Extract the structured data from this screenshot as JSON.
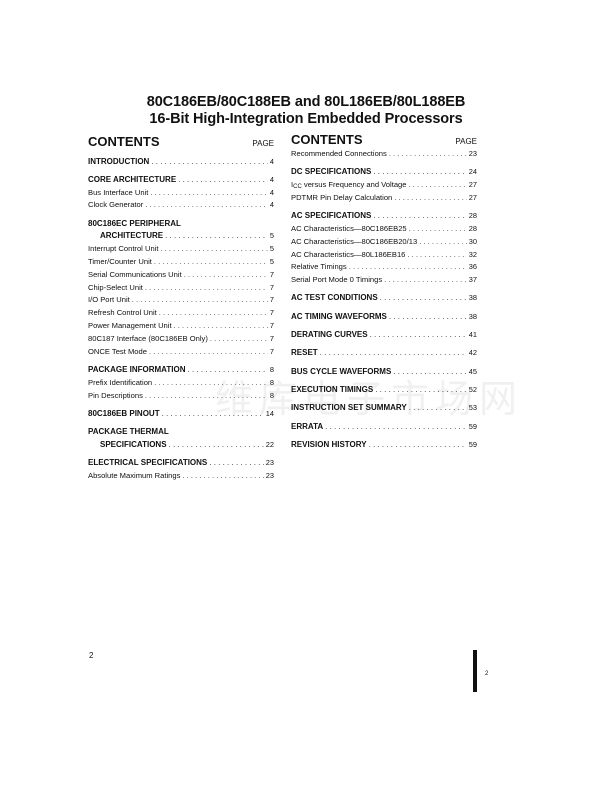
{
  "title": {
    "line1": "80C186EB/80C188EB and 80L186EB/80L188EB",
    "line2": "16-Bit High-Integration Embedded Processors"
  },
  "left": {
    "heading": "CONTENTS",
    "page_label": "PAGE",
    "groups": [
      [
        {
          "label": "INTRODUCTION",
          "page": "4",
          "bold": true
        }
      ],
      [
        {
          "label": "CORE ARCHITECTURE",
          "page": "4",
          "bold": true
        },
        {
          "label": "Bus Interface Unit",
          "page": "4"
        },
        {
          "label": "Clock Generator",
          "page": "4"
        }
      ],
      [
        {
          "label": "80C186EC PERIPHERAL",
          "page": "",
          "bold": true,
          "nolead": true
        },
        {
          "label": "ARCHITECTURE",
          "page": "5",
          "bold": true,
          "indent": true
        },
        {
          "label": "Interrupt Control Unit",
          "page": "5"
        },
        {
          "label": "Timer/Counter Unit",
          "page": "5"
        },
        {
          "label": "Serial Communications Unit",
          "page": "7"
        },
        {
          "label": "Chip-Select Unit",
          "page": "7"
        },
        {
          "label": "I/O Port Unit",
          "page": "7"
        },
        {
          "label": "Refresh Control Unit",
          "page": "7"
        },
        {
          "label": "Power Management Unit",
          "page": "7"
        },
        {
          "label": "80C187 Interface (80C186EB Only)",
          "page": "7"
        },
        {
          "label": "ONCE Test Mode",
          "page": "7"
        }
      ],
      [
        {
          "label": "PACKAGE INFORMATION",
          "page": "8",
          "bold": true
        },
        {
          "label": "Prefix Identification",
          "page": "8"
        },
        {
          "label": "Pin Descriptions",
          "page": "8"
        }
      ],
      [
        {
          "label": "80C186EB PINOUT",
          "page": "14",
          "bold": true
        }
      ],
      [
        {
          "label": "PACKAGE THERMAL",
          "page": "",
          "bold": true,
          "nolead": true
        },
        {
          "label": "SPECIFICATIONS",
          "page": "22",
          "bold": true,
          "indent": true
        }
      ],
      [
        {
          "label": "ELECTRICAL SPECIFICATIONS",
          "page": "23",
          "bold": true
        },
        {
          "label": "Absolute Maximum Ratings",
          "page": "23"
        }
      ]
    ]
  },
  "right": {
    "heading": "CONTENTS",
    "page_label": "PAGE",
    "groups": [
      [
        {
          "label": "Recommended Connections",
          "page": "23"
        }
      ],
      [
        {
          "label": "DC SPECIFICATIONS",
          "page": "24",
          "bold": true
        },
        {
          "label": "I",
          "sub": "CC",
          "rest": " versus Frequency and Voltage",
          "page": "27"
        },
        {
          "label": "PDTMR Pin Delay Calculation",
          "page": "27"
        }
      ],
      [
        {
          "label": "AC SPECIFICATIONS",
          "page": "28",
          "bold": true
        },
        {
          "label": "AC Characteristics—80C186EB25",
          "page": "28"
        },
        {
          "label": "AC Characteristics—80C186EB20/13",
          "page": "30"
        },
        {
          "label": "AC Characteristics—80L186EB16",
          "page": "32"
        },
        {
          "label": "Relative Timings",
          "page": "36"
        },
        {
          "label": "Serial Port Mode 0 Timings",
          "page": "37"
        }
      ],
      [
        {
          "label": "AC TEST CONDITIONS",
          "page": "38",
          "bold": true
        }
      ],
      [
        {
          "label": "AC TIMING WAVEFORMS",
          "page": "38",
          "bold": true
        }
      ],
      [
        {
          "label": "DERATING CURVES",
          "page": "41",
          "bold": true
        }
      ],
      [
        {
          "label": "RESET",
          "page": "42",
          "bold": true
        }
      ],
      [
        {
          "label": "BUS CYCLE WAVEFORMS",
          "page": "45",
          "bold": true
        }
      ],
      [
        {
          "label": "EXECUTION TIMINGS",
          "page": "52",
          "bold": true
        }
      ],
      [
        {
          "label": "INSTRUCTION SET SUMMARY",
          "page": "53",
          "bold": true
        }
      ],
      [
        {
          "label": "ERRATA",
          "page": "59",
          "bold": true
        }
      ],
      [
        {
          "label": "REVISION HISTORY",
          "page": "59",
          "bold": true
        }
      ]
    ]
  },
  "footer": {
    "page_number": "2",
    "margin_page_number": "2"
  },
  "watermark": "维库电子市场网"
}
